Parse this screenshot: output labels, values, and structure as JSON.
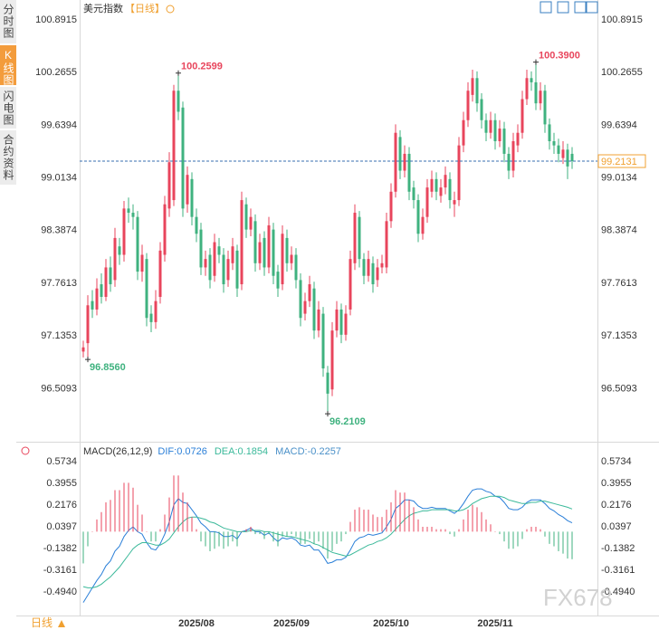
{
  "chart_data": [
    {
      "type": "candlestick",
      "title": "美元指数",
      "period": "【日线】",
      "grid": false,
      "up_color": "#e8455c",
      "down_color": "#3fb27f",
      "high_label_color": "#e8455c",
      "low_label_color": "#3fb27f",
      "last_price": 99.2131,
      "last_price_color": "#f0a030",
      "last_line_color": "#3a6fb0",
      "ylim": [
        95.911,
        101.042
      ],
      "yticks": [
        100.8915,
        100.2655,
        99.6394,
        99.0134,
        98.3874,
        97.7613,
        97.1353,
        96.5093
      ],
      "high_labels": [
        {
          "value": 100.2599,
          "label": "100.2599"
        },
        {
          "value": 100.39,
          "label": "100.3900"
        }
      ],
      "low_labels": [
        {
          "value": 96.856,
          "label": "96.8560"
        },
        {
          "value": 96.2109,
          "label": "96.2109"
        }
      ],
      "categories": [
        null,
        null,
        null,
        null,
        null,
        null,
        null,
        null,
        null,
        null,
        null,
        null,
        null,
        null,
        null,
        null,
        null,
        null,
        null,
        null,
        null,
        null,
        null,
        null,
        null,
        "2025/08",
        null,
        null,
        null,
        null,
        null,
        null,
        null,
        null,
        null,
        null,
        null,
        null,
        null,
        null,
        null,
        null,
        null,
        null,
        null,
        null,
        "2025/09",
        null,
        null,
        null,
        null,
        null,
        null,
        null,
        null,
        null,
        null,
        null,
        null,
        null,
        null,
        null,
        null,
        null,
        null,
        null,
        null,
        null,
        "2025/10",
        null,
        null,
        null,
        null,
        null,
        null,
        null,
        null,
        null,
        null,
        null,
        null,
        null,
        null,
        null,
        null,
        null,
        null,
        null,
        null,
        null,
        null,
        "2025/11",
        null,
        null,
        null,
        null,
        null,
        null,
        null,
        null,
        null,
        null,
        null,
        null,
        null,
        null,
        null,
        null,
        null
      ],
      "ohlc": [
        [
          96.95,
          97.08,
          96.88,
          97.0
        ],
        [
          97.05,
          97.62,
          96.856,
          97.5
        ],
        [
          97.55,
          97.68,
          97.35,
          97.45
        ],
        [
          97.45,
          97.82,
          97.38,
          97.7
        ],
        [
          97.75,
          97.88,
          97.52,
          97.6
        ],
        [
          97.6,
          98.05,
          97.55,
          97.95
        ],
        [
          97.95,
          98.08,
          97.66,
          97.75
        ],
        [
          97.8,
          98.42,
          97.72,
          98.3
        ],
        [
          98.2,
          98.3,
          97.98,
          98.1
        ],
        [
          98.1,
          98.74,
          98.02,
          98.65
        ],
        [
          98.65,
          98.78,
          98.48,
          98.6
        ],
        [
          98.6,
          98.7,
          98.4,
          98.55
        ],
        [
          98.55,
          98.62,
          97.8,
          97.9
        ],
        [
          97.9,
          98.22,
          97.78,
          98.1
        ],
        [
          98.05,
          98.12,
          97.25,
          97.35
        ],
        [
          97.4,
          97.5,
          97.18,
          97.3
        ],
        [
          97.3,
          97.68,
          97.22,
          97.55
        ],
        [
          97.6,
          98.25,
          97.52,
          98.15
        ],
        [
          98.1,
          98.8,
          98.02,
          98.7
        ],
        [
          98.65,
          99.32,
          98.55,
          99.2
        ],
        [
          98.75,
          100.12,
          98.68,
          100.05
        ],
        [
          100.05,
          100.2599,
          99.7,
          99.8
        ],
        [
          99.85,
          99.92,
          98.55,
          98.65
        ],
        [
          98.7,
          99.15,
          98.6,
          99.05
        ],
        [
          99.0,
          99.08,
          98.45,
          98.55
        ],
        [
          98.55,
          98.65,
          98.25,
          98.35
        ],
        [
          98.4,
          98.48,
          97.86,
          97.95
        ],
        [
          97.95,
          98.15,
          97.85,
          98.05
        ],
        [
          98.1,
          98.18,
          97.7,
          97.8
        ],
        [
          97.85,
          98.35,
          97.78,
          98.25
        ],
        [
          98.2,
          98.3,
          98.0,
          98.1
        ],
        [
          98.1,
          98.18,
          97.65,
          97.75
        ],
        [
          97.8,
          98.15,
          97.72,
          98.05
        ],
        [
          98.0,
          98.3,
          97.92,
          98.2
        ],
        [
          98.15,
          98.22,
          97.6,
          97.7
        ],
        [
          97.75,
          98.85,
          97.68,
          98.75
        ],
        [
          98.7,
          98.78,
          98.3,
          98.4
        ],
        [
          98.4,
          98.65,
          98.32,
          98.55
        ],
        [
          98.5,
          98.58,
          97.9,
          98.0
        ],
        [
          98.0,
          98.35,
          97.92,
          98.25
        ],
        [
          98.3,
          98.38,
          97.85,
          97.95
        ],
        [
          97.95,
          98.55,
          97.88,
          98.45
        ],
        [
          98.4,
          98.48,
          97.75,
          97.85
        ],
        [
          97.9,
          97.98,
          97.6,
          97.7
        ],
        [
          97.75,
          98.45,
          97.68,
          98.35
        ],
        [
          98.3,
          98.4,
          97.9,
          98.0
        ],
        [
          98.0,
          98.2,
          97.92,
          98.1
        ],
        [
          98.1,
          98.18,
          97.7,
          97.8
        ],
        [
          97.8,
          97.88,
          97.25,
          97.35
        ],
        [
          97.4,
          97.65,
          97.32,
          97.55
        ],
        [
          97.55,
          97.85,
          97.48,
          97.75
        ],
        [
          97.7,
          97.78,
          97.1,
          97.2
        ],
        [
          97.2,
          97.55,
          97.12,
          97.45
        ],
        [
          97.4,
          97.48,
          96.65,
          96.75
        ],
        [
          96.7,
          96.78,
          96.2109,
          96.45
        ],
        [
          96.5,
          97.3,
          96.42,
          97.2
        ],
        [
          97.2,
          97.55,
          97.12,
          97.45
        ],
        [
          97.45,
          97.52,
          97.05,
          97.15
        ],
        [
          97.15,
          97.5,
          97.08,
          97.4
        ],
        [
          97.45,
          98.15,
          97.38,
          98.05
        ],
        [
          98.0,
          98.7,
          97.92,
          98.6
        ],
        [
          98.55,
          98.62,
          97.95,
          98.05
        ],
        [
          98.05,
          98.12,
          97.75,
          97.85
        ],
        [
          97.85,
          98.15,
          97.78,
          98.05
        ],
        [
          98.0,
          98.08,
          97.65,
          97.75
        ],
        [
          97.8,
          98.05,
          97.72,
          97.95
        ],
        [
          97.95,
          98.1,
          97.88,
          98.0
        ],
        [
          97.95,
          98.6,
          97.88,
          98.5
        ],
        [
          98.5,
          98.95,
          98.42,
          98.85
        ],
        [
          98.85,
          99.65,
          98.78,
          99.55
        ],
        [
          99.5,
          99.58,
          99.0,
          99.1
        ],
        [
          99.1,
          99.4,
          99.02,
          99.3
        ],
        [
          99.3,
          99.38,
          98.75,
          98.85
        ],
        [
          98.9,
          98.98,
          98.65,
          98.75
        ],
        [
          98.75,
          98.82,
          98.25,
          98.35
        ],
        [
          98.35,
          98.65,
          98.28,
          98.55
        ],
        [
          98.55,
          99.0,
          98.48,
          98.9
        ],
        [
          98.85,
          99.1,
          98.78,
          99.0
        ],
        [
          99.0,
          99.08,
          98.75,
          98.85
        ],
        [
          98.8,
          99.0,
          98.72,
          98.9
        ],
        [
          98.9,
          99.15,
          98.82,
          99.05
        ],
        [
          99.0,
          99.08,
          98.65,
          98.75
        ],
        [
          98.7,
          98.85,
          98.55,
          98.75
        ],
        [
          98.75,
          99.5,
          98.68,
          99.4
        ],
        [
          99.4,
          99.8,
          99.32,
          99.7
        ],
        [
          99.7,
          100.15,
          99.62,
          100.05
        ],
        [
          100.0,
          100.3,
          99.92,
          100.2
        ],
        [
          100.2,
          100.28,
          99.8,
          99.9
        ],
        [
          99.95,
          100.02,
          99.6,
          99.7
        ],
        [
          99.7,
          99.78,
          99.45,
          99.55
        ],
        [
          99.55,
          99.8,
          99.48,
          99.7
        ],
        [
          99.7,
          99.78,
          99.35,
          99.45
        ],
        [
          99.45,
          99.7,
          99.38,
          99.6
        ],
        [
          99.6,
          99.68,
          99.2,
          99.3
        ],
        [
          99.3,
          99.38,
          99.0,
          99.1
        ],
        [
          99.1,
          99.55,
          99.02,
          99.45
        ],
        [
          99.4,
          99.65,
          99.32,
          99.55
        ],
        [
          99.55,
          100.05,
          99.48,
          99.95
        ],
        [
          99.95,
          100.3,
          99.88,
          100.2
        ],
        [
          100.2,
          100.28,
          100.05,
          100.15
        ],
        [
          100.15,
          100.39,
          99.82,
          99.9
        ],
        [
          99.9,
          100.15,
          99.82,
          100.05
        ],
        [
          100.05,
          100.12,
          99.55,
          99.65
        ],
        [
          99.65,
          99.72,
          99.35,
          99.45
        ],
        [
          99.45,
          99.55,
          99.3,
          99.4
        ],
        [
          99.4,
          99.48,
          99.2,
          99.3
        ],
        [
          99.25,
          99.45,
          99.18,
          99.35
        ],
        [
          99.35,
          99.42,
          99.0,
          99.15
        ],
        [
          99.3,
          99.38,
          99.12,
          99.2131
        ]
      ]
    },
    {
      "type": "macd",
      "title": "MACD(26,12,9)",
      "grid": false,
      "ylim": [
        -0.6867,
        0.6846
      ],
      "yticks": [
        0.5734,
        0.3955,
        0.2176,
        0.0397,
        -0.1382,
        -0.3161,
        {
          "value": -0.494,
          "label": "-0.4940"
        }
      ],
      "series": [
        {
          "name": "DIF",
          "legend_label": "DIF:0.0726",
          "type": "line",
          "color": "#2a7fd8",
          "values": [
            -0.58,
            -0.52,
            -0.46,
            -0.4,
            -0.35,
            -0.28,
            -0.24,
            -0.16,
            -0.12,
            -0.04,
            0.01,
            0.04,
            0.0,
            -0.02,
            -0.09,
            -0.14,
            -0.15,
            -0.1,
            -0.02,
            0.08,
            0.22,
            0.27,
            0.24,
            0.23,
            0.18,
            0.13,
            0.07,
            0.04,
            0.0,
            0.0,
            -0.01,
            -0.04,
            -0.04,
            -0.03,
            -0.06,
            0.0,
            0.01,
            0.03,
            0.0,
            0.0,
            -0.03,
            -0.01,
            -0.05,
            -0.08,
            -0.05,
            -0.06,
            -0.05,
            -0.07,
            -0.11,
            -0.12,
            -0.11,
            -0.15,
            -0.15,
            -0.2,
            -0.26,
            -0.25,
            -0.23,
            -0.23,
            -0.21,
            -0.15,
            -0.08,
            -0.05,
            -0.04,
            -0.02,
            -0.03,
            -0.02,
            -0.01,
            0.04,
            0.1,
            0.19,
            0.22,
            0.26,
            0.26,
            0.25,
            0.21,
            0.19,
            0.19,
            0.2,
            0.19,
            0.19,
            0.19,
            0.17,
            0.15,
            0.18,
            0.23,
            0.29,
            0.34,
            0.35,
            0.35,
            0.33,
            0.32,
            0.29,
            0.28,
            0.24,
            0.19,
            0.18,
            0.18,
            0.2,
            0.24,
            0.26,
            0.26,
            0.26,
            0.23,
            0.19,
            0.17,
            0.14,
            0.12,
            0.09,
            0.0726
          ]
        },
        {
          "name": "DEA",
          "legend_label": "DEA:0.1854",
          "type": "line",
          "color": "#3bb99a",
          "values": [
            -0.45,
            -0.46,
            -0.46,
            -0.45,
            -0.43,
            -0.4,
            -0.37,
            -0.33,
            -0.29,
            -0.24,
            -0.19,
            -0.14,
            -0.11,
            -0.09,
            -0.09,
            -0.1,
            -0.11,
            -0.11,
            -0.09,
            -0.06,
            -0.01,
            0.04,
            0.08,
            0.11,
            0.12,
            0.12,
            0.11,
            0.1,
            0.08,
            0.07,
            0.05,
            0.03,
            0.02,
            0.01,
            0.0,
            0.0,
            0.0,
            0.01,
            0.01,
            0.01,
            0.0,
            0.0,
            -0.01,
            -0.02,
            -0.03,
            -0.04,
            -0.04,
            -0.05,
            -0.06,
            -0.07,
            -0.08,
            -0.1,
            -0.11,
            -0.13,
            -0.15,
            -0.17,
            -0.18,
            -0.19,
            -0.2,
            -0.19,
            -0.17,
            -0.15,
            -0.13,
            -0.11,
            -0.1,
            -0.08,
            -0.07,
            -0.05,
            -0.02,
            0.02,
            0.06,
            0.1,
            0.13,
            0.15,
            0.16,
            0.17,
            0.17,
            0.18,
            0.18,
            0.18,
            0.18,
            0.18,
            0.17,
            0.17,
            0.18,
            0.2,
            0.23,
            0.25,
            0.27,
            0.28,
            0.29,
            0.29,
            0.29,
            0.28,
            0.26,
            0.25,
            0.24,
            0.23,
            0.23,
            0.24,
            0.24,
            0.25,
            0.25,
            0.24,
            0.23,
            0.22,
            0.21,
            0.2,
            0.1854
          ]
        },
        {
          "name": "MACD",
          "legend_label": "MACD:-0.2257",
          "type": "bar",
          "color": "#e8455c",
          "negative_color": "#3fb27f",
          "label_color": "#4a90c8",
          "values": [
            -0.26,
            -0.12,
            0.0,
            0.1,
            0.16,
            0.24,
            0.26,
            0.34,
            0.34,
            0.4,
            0.4,
            0.36,
            0.22,
            0.14,
            0.0,
            -0.08,
            -0.08,
            0.02,
            0.14,
            0.28,
            0.46,
            0.46,
            0.32,
            0.24,
            0.12,
            0.02,
            -0.08,
            -0.12,
            -0.16,
            -0.14,
            -0.12,
            -0.14,
            -0.12,
            -0.08,
            -0.12,
            0.0,
            0.02,
            0.04,
            -0.02,
            -0.02,
            -0.06,
            -0.02,
            -0.08,
            -0.12,
            -0.04,
            -0.04,
            -0.02,
            -0.04,
            -0.1,
            -0.1,
            -0.06,
            -0.1,
            -0.08,
            -0.14,
            -0.22,
            -0.16,
            -0.1,
            -0.08,
            -0.02,
            0.08,
            0.18,
            0.2,
            0.18,
            0.18,
            0.14,
            0.12,
            0.12,
            0.18,
            0.24,
            0.34,
            0.32,
            0.32,
            0.26,
            0.2,
            0.1,
            0.04,
            0.04,
            0.04,
            0.02,
            0.02,
            0.02,
            -0.02,
            -0.04,
            0.02,
            0.1,
            0.18,
            0.22,
            0.2,
            0.16,
            0.1,
            0.06,
            0.0,
            -0.02,
            -0.08,
            -0.14,
            -0.14,
            -0.12,
            -0.06,
            0.02,
            0.04,
            0.04,
            0.02,
            -0.04,
            -0.1,
            -0.12,
            -0.16,
            -0.18,
            -0.22,
            -0.2257
          ]
        }
      ]
    }
  ],
  "sidebar": {
    "tabs": [
      "分时图",
      "K线图",
      "闪电图",
      "合约资料"
    ],
    "active_tab": 1
  },
  "footer_label": "日线",
  "watermark": "FX678"
}
